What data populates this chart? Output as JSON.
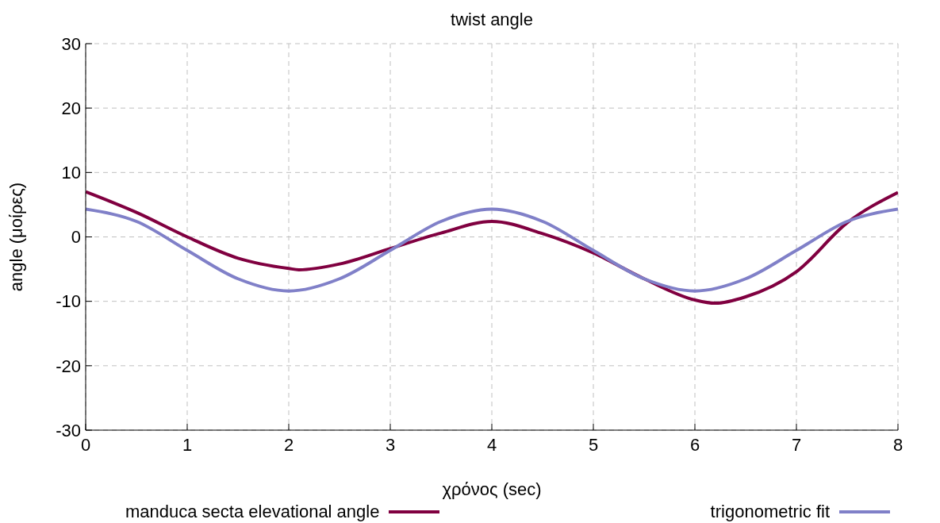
{
  "chart_data": {
    "type": "line",
    "title": "twist angle",
    "xlabel": "χρόνος (sec)",
    "ylabel": "angle (μοίρες)",
    "xlim": [
      0,
      8
    ],
    "xticks": [
      0,
      1,
      2,
      3,
      4,
      5,
      6,
      7,
      8
    ],
    "ylim": [
      -30,
      30
    ],
    "yticks": [
      -30,
      -20,
      -10,
      0,
      10,
      20,
      30
    ],
    "grid": true,
    "legend": "bottom",
    "line_style": "solid",
    "marker": "none",
    "series": [
      {
        "name": "manduca secta elevational angle",
        "color": "#800040",
        "x": [
          0,
          0.5,
          1,
          1.5,
          2,
          2.1,
          2.5,
          3,
          3.5,
          4,
          4.5,
          5,
          5.5,
          6,
          6.2,
          6.5,
          7,
          7.5,
          8
        ],
        "values": [
          7,
          3.8,
          0,
          -3.3,
          -4.9,
          -5.1,
          -4.2,
          -1.8,
          0.6,
          2.4,
          0.5,
          -2.5,
          -6.5,
          -9.8,
          -10.3,
          -9.3,
          -5.4,
          2.2,
          6.9
        ]
      },
      {
        "name": "trigonometric fit",
        "color": "#8080c8",
        "x": [
          0,
          0.5,
          1,
          1.5,
          2,
          2.5,
          3,
          3.5,
          4,
          4.5,
          5,
          5.5,
          6,
          6.5,
          7,
          7.5,
          8
        ],
        "values": [
          4.3,
          2.4,
          -2.1,
          -6.5,
          -8.4,
          -6.5,
          -2.1,
          2.4,
          4.3,
          2.4,
          -2.1,
          -6.5,
          -8.4,
          -6.5,
          -2.1,
          2.4,
          4.3
        ]
      }
    ]
  }
}
